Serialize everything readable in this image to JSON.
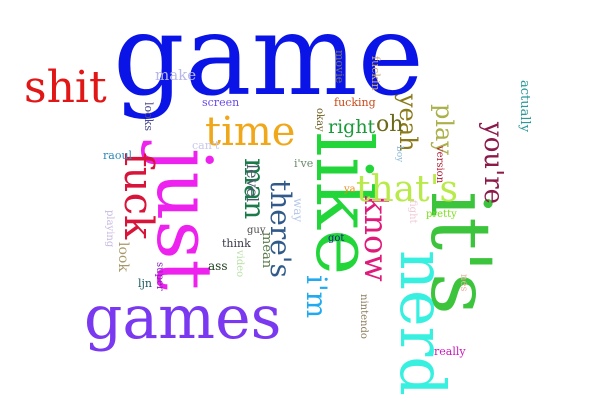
{
  "words": [
    {
      "text": "game",
      "color": "#0a14e6"
    },
    {
      "text": "shit",
      "color": "#e11616"
    },
    {
      "text": "just",
      "color": "#ee22ee"
    },
    {
      "text": "like",
      "color": "#22d63a"
    },
    {
      "text": "it's",
      "color": "#3cc43c"
    },
    {
      "text": "nerd",
      "color": "#38f0e0"
    },
    {
      "text": "games",
      "color": "#7a38f0"
    },
    {
      "text": "time",
      "color": "#f0a81a"
    },
    {
      "text": "fuck",
      "color": "#d8143a"
    },
    {
      "text": "know",
      "color": "#e01a7a"
    },
    {
      "text": "that's",
      "color": "#b8ea4a"
    },
    {
      "text": "i'm",
      "color": "#22aaf0"
    },
    {
      "text": "man",
      "color": "#1a7a4a"
    },
    {
      "text": "there's",
      "color": "#305a8a"
    },
    {
      "text": "you're",
      "color": "#8a1a4a"
    },
    {
      "text": "play",
      "color": "#aab04a"
    },
    {
      "text": "yeah",
      "color": "#8a7a1a"
    },
    {
      "text": "oh",
      "color": "#6a6a1a"
    },
    {
      "text": "right",
      "color": "#1a9a3a"
    },
    {
      "text": "level",
      "color": "#4a5a6a"
    },
    {
      "text": "make",
      "color": "#b8b8e8"
    },
    {
      "text": "movie",
      "color": "#707070"
    },
    {
      "text": "fuckin",
      "color": "#c8a878"
    },
    {
      "text": "actually",
      "color": "#2a9a9a"
    },
    {
      "text": "screen",
      "color": "#6a4ae8"
    },
    {
      "text": "fucking",
      "color": "#c84a1a"
    },
    {
      "text": "okay",
      "color": "#6a5a1a"
    },
    {
      "text": "looks",
      "color": "#4a4a8a"
    },
    {
      "text": "can't",
      "color": "#c8c8ee"
    },
    {
      "text": "raoul",
      "color": "#2a8ab8"
    },
    {
      "text": "boy",
      "color": "#8ab8d8"
    },
    {
      "text": "version",
      "color": "#b01a30"
    },
    {
      "text": "i've",
      "color": "#6a8a6a"
    },
    {
      "text": "ya",
      "color": "#ea8a1a"
    },
    {
      "text": "way",
      "color": "#b8c8e8"
    },
    {
      "text": "fight",
      "color": "#f0c8d8"
    },
    {
      "text": "pretty",
      "color": "#7ae01a"
    },
    {
      "text": "guy",
      "color": "#4a4a4a"
    },
    {
      "text": "got",
      "color": "#1a1a8a"
    },
    {
      "text": "think",
      "color": "#3a3a4a"
    },
    {
      "text": "mean",
      "color": "#5a7a4a"
    },
    {
      "text": "video",
      "color": "#b8e0a8"
    },
    {
      "text": "ass",
      "color": "#1a3a1a"
    },
    {
      "text": "playing",
      "color": "#c8b8e0"
    },
    {
      "text": "look",
      "color": "#a89868"
    },
    {
      "text": "super",
      "color": "#8a1ab8"
    },
    {
      "text": "ljn",
      "color": "#1a5a5a"
    },
    {
      "text": "nes",
      "color": "#f0b0a0"
    },
    {
      "text": "nintendo",
      "color": "#8a7a5a"
    },
    {
      "text": "really",
      "color": "#c81ab8"
    }
  ]
}
